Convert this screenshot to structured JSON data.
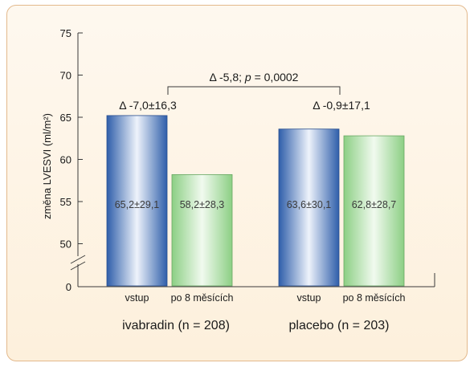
{
  "chart_data": {
    "type": "bar",
    "ylabel": "změna LVESVI (ml/m²)",
    "ylim": [
      45,
      75
    ],
    "yticks": [
      75,
      70,
      65,
      60,
      55,
      50
    ],
    "ybreak_label": "0",
    "grid": false,
    "groups": [
      {
        "label": "ivabradin (n = 208)",
        "delta": "Δ -7,0±16,3",
        "bars": [
          {
            "category": "vstup",
            "value": 65.2,
            "label": "65,2±29,1",
            "style": "blue"
          },
          {
            "category": "po 8 měsících",
            "value": 58.2,
            "label": "58,2±28,3",
            "style": "green"
          }
        ]
      },
      {
        "label": "placebo (n = 203)",
        "delta": "Δ -0,9±17,1",
        "bars": [
          {
            "category": "vstup",
            "value": 63.6,
            "label": "63,6±30,1",
            "style": "blue"
          },
          {
            "category": "po 8 měsících",
            "value": 62.8,
            "label": "62,8±28,7",
            "style": "green"
          }
        ]
      }
    ],
    "comparison": {
      "prefix": "Δ -5,8; ",
      "p_symbol": "p",
      "suffix": " = 0,0002"
    }
  },
  "colors": {
    "blue_dark": "#2f5eaa",
    "blue_light": "#eef3fb",
    "green_dark": "#8ccf84",
    "green_light": "#f1faef",
    "axis": "#3a3a3a",
    "text": "#1a1a1a"
  }
}
